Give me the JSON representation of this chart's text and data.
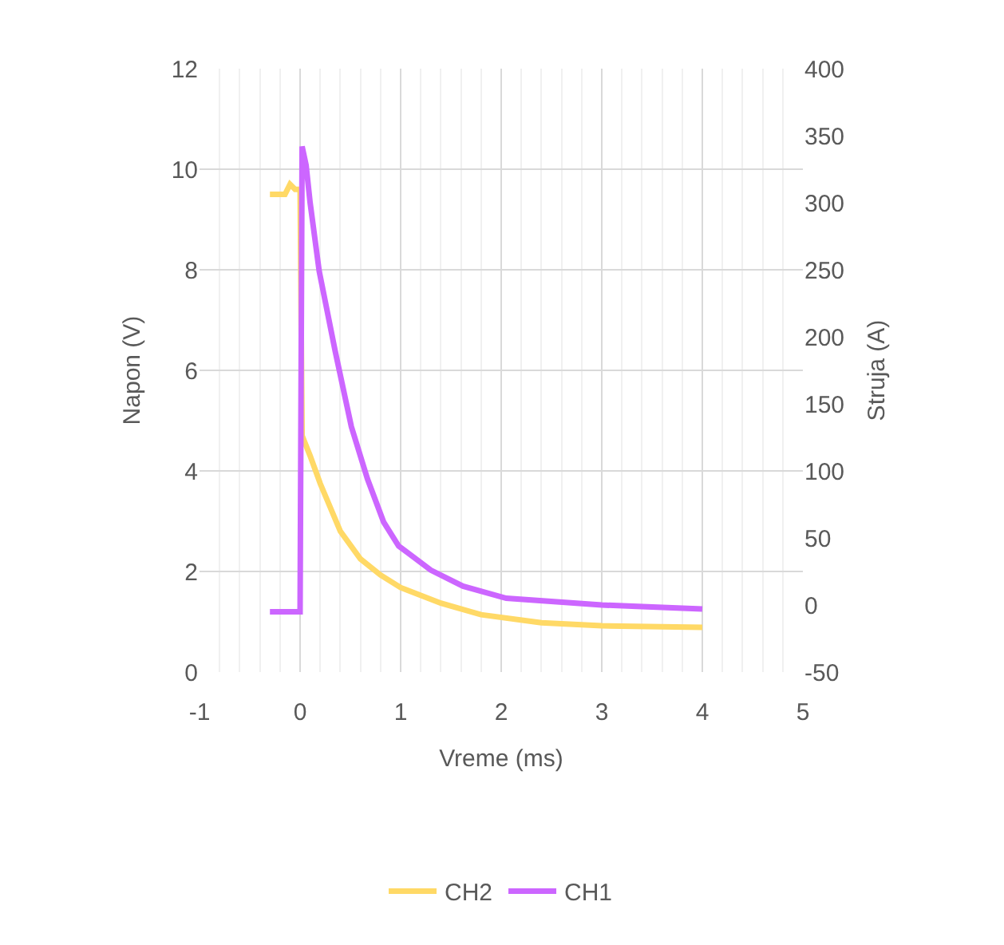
{
  "chart_data": {
    "type": "line",
    "xlabel": "Vreme (ms)",
    "ylabel": "Napon (V)",
    "y2label": "Struja (A)",
    "xlim": [
      -1,
      5
    ],
    "xticks": [
      -1,
      0,
      1,
      2,
      3,
      4,
      5
    ],
    "ylim": [
      0,
      12
    ],
    "yticks": [
      0,
      2,
      4,
      6,
      8,
      10,
      12
    ],
    "y2lim": [
      -50,
      400
    ],
    "y2ticks": [
      -50,
      0,
      50,
      100,
      150,
      200,
      250,
      300,
      350,
      400
    ],
    "grid": true,
    "legend": "bottom",
    "marker": "none",
    "line_style": "solid",
    "series": [
      {
        "name": "CH2",
        "color": "#ffd966",
        "x": [
          -0.3,
          -0.15,
          -0.1,
          -0.05,
          0,
          0.02,
          0.1,
          0.2,
          0.4,
          0.6,
          0.8,
          1.0,
          1.4,
          1.8,
          2.4,
          3.0,
          4.0
        ],
        "values": [
          9.5,
          9.5,
          9.7,
          9.6,
          9.6,
          4.7,
          4.3,
          3.75,
          2.8,
          2.25,
          1.93,
          1.68,
          1.37,
          1.14,
          0.98,
          0.92,
          0.89
        ]
      },
      {
        "name": "CH1",
        "color": "#cc66ff",
        "axis": "y2",
        "x": [
          -0.3,
          0,
          0.02,
          0.06,
          0.1,
          0.19,
          0.35,
          0.51,
          0.67,
          0.83,
          0.98,
          1.3,
          1.62,
          2.05,
          3.0,
          4.0
        ],
        "values": [
          -5,
          -5,
          342,
          328,
          300,
          249,
          189,
          133,
          94,
          62,
          44,
          26,
          14,
          5,
          0,
          -3
        ]
      }
    ]
  }
}
